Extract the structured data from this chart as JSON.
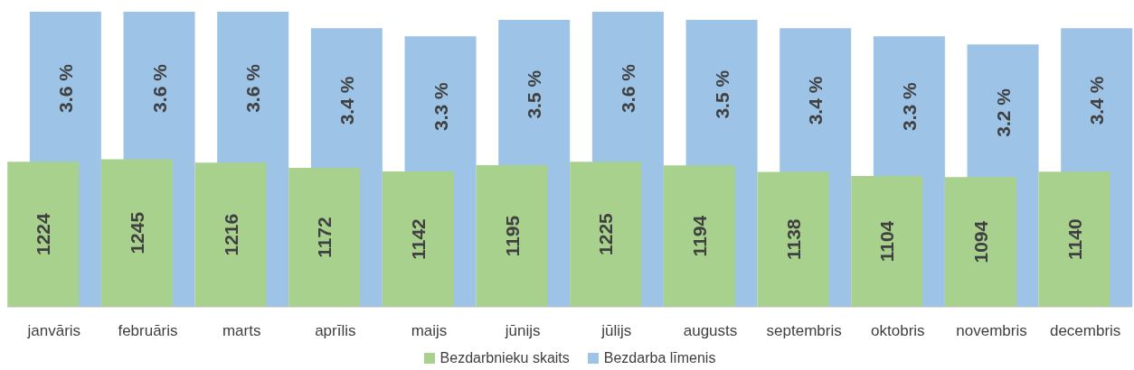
{
  "chart_data": {
    "type": "bar",
    "categories": [
      "janvāris",
      "februāris",
      "marts",
      "aprīlis",
      "maijs",
      "jūnijs",
      "jūlijs",
      "augusts",
      "septembris",
      "oktobris",
      "novembris",
      "decembris"
    ],
    "series": [
      {
        "name": "Bezdarbnieku skaits",
        "color": "#a9d18e",
        "values": [
          1224,
          1245,
          1216,
          1172,
          1142,
          1195,
          1225,
          1194,
          1138,
          1104,
          1094,
          1140
        ]
      },
      {
        "name": "Bezdarba līmenis",
        "color": "#9dc3e6",
        "axis": "y2",
        "values": [
          3.6,
          3.6,
          3.6,
          3.4,
          3.3,
          3.5,
          3.6,
          3.5,
          3.4,
          3.3,
          3.2,
          3.4
        ],
        "value_labels": [
          "3.6 %",
          "3.6 %",
          "3.6 %",
          "3.4 %",
          "3.3 %",
          "3.5 %",
          "3.6 %",
          "3.5 %",
          "3.4 %",
          "3.3 %",
          "3.2 %",
          "3.4 %"
        ]
      }
    ],
    "data_labels": true,
    "legend": "bottom"
  }
}
